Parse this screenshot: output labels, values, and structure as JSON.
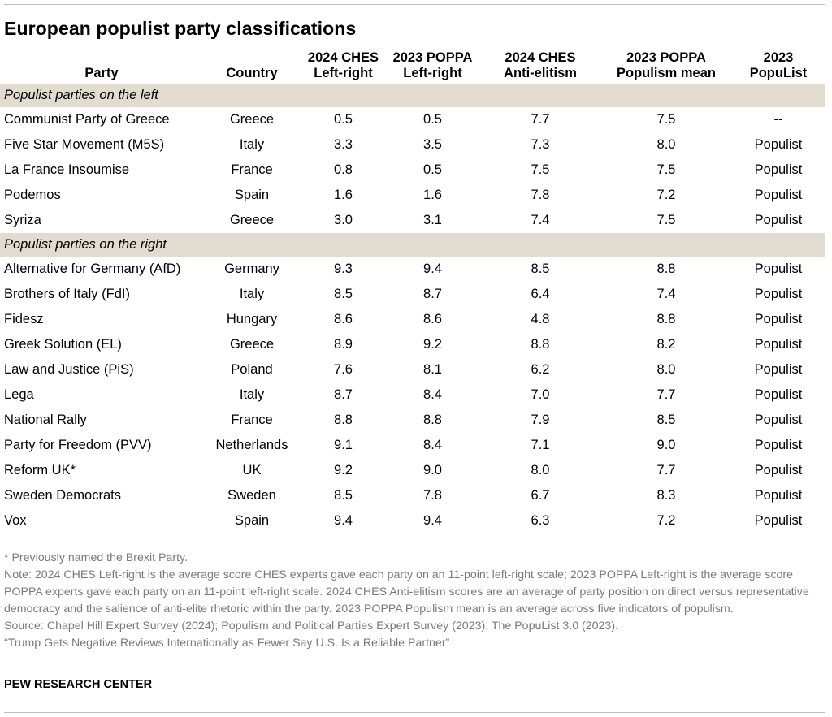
{
  "title": "European populist party classifications",
  "columns": {
    "party": "Party",
    "country": "Country",
    "ches_lr_1": "2024 CHES",
    "ches_lr_2": "Left-right",
    "poppa_lr_1": "2023 POPPA",
    "poppa_lr_2": "Left-right",
    "ches_ae_1": "2024 CHES",
    "ches_ae_2": "Anti-elitism",
    "poppa_pop_1": "2023 POPPA",
    "poppa_pop_2": "Populism mean",
    "populist_1": "2023",
    "populist_2": "PopuList"
  },
  "sections": [
    {
      "label": "Populist parties on the left",
      "rows": [
        [
          "Communist Party of Greece",
          "Greece",
          "0.5",
          "0.5",
          "7.7",
          "7.5",
          "--"
        ],
        [
          "Five Star Movement (M5S)",
          "Italy",
          "3.3",
          "3.5",
          "7.3",
          "8.0",
          "Populist"
        ],
        [
          "La France Insoumise",
          "France",
          "0.8",
          "0.5",
          "7.5",
          "7.5",
          "Populist"
        ],
        [
          "Podemos",
          "Spain",
          "1.6",
          "1.6",
          "7.8",
          "7.2",
          "Populist"
        ],
        [
          "Syriza",
          "Greece",
          "3.0",
          "3.1",
          "7.4",
          "7.5",
          "Populist"
        ]
      ]
    },
    {
      "label": "Populist parties on the right",
      "rows": [
        [
          "Alternative for Germany (AfD)",
          "Germany",
          "9.3",
          "9.4",
          "8.5",
          "8.8",
          "Populist"
        ],
        [
          "Brothers of Italy (FdI)",
          "Italy",
          "8.5",
          "8.7",
          "6.4",
          "7.4",
          "Populist"
        ],
        [
          "Fidesz",
          "Hungary",
          "8.6",
          "8.6",
          "4.8",
          "8.8",
          "Populist"
        ],
        [
          "Greek Solution (EL)",
          "Greece",
          "8.9",
          "9.2",
          "8.8",
          "8.2",
          "Populist"
        ],
        [
          "Law and Justice (PiS)",
          "Poland",
          "7.6",
          "8.1",
          "6.2",
          "8.0",
          "Populist"
        ],
        [
          "Lega",
          "Italy",
          "8.7",
          "8.4",
          "7.0",
          "7.7",
          "Populist"
        ],
        [
          "National Rally",
          "France",
          "8.8",
          "8.8",
          "7.9",
          "8.5",
          "Populist"
        ],
        [
          "Party for Freedom (PVV)",
          "Netherlands",
          "9.1",
          "8.4",
          "7.1",
          "9.0",
          "Populist"
        ],
        [
          "Reform UK*",
          "UK",
          "9.2",
          "9.0",
          "8.0",
          "7.7",
          "Populist"
        ],
        [
          "Sweden Democrats",
          "Sweden",
          "8.5",
          "7.8",
          "6.7",
          "8.3",
          "Populist"
        ],
        [
          "Vox",
          "Spain",
          "9.4",
          "9.4",
          "6.3",
          "7.2",
          "Populist"
        ]
      ]
    }
  ],
  "notes": {
    "footnote": "* Previously named the Brexit Party.",
    "note": "Note: 2024 CHES Left-right is the average score CHES experts gave each party on an 11-point left-right scale; 2023 POPPA Left-right is the average score POPPA experts gave each party on an 11-point left-right scale. 2024 CHES Anti-elitism scores are an average of party position on direct versus representative democracy and the salience of anti-elite rhetoric within the party. 2023 POPPA Populism mean is an average across five indicators of populism.",
    "source": "Source: Chapel Hill Expert Survey (2024); Populism and Political Parties Expert Survey (2023); The PopuList 3.0 (2023).",
    "report": "“Trump Gets Negative Reviews Internationally as Fewer Say U.S. Is a Reliable Partner”"
  },
  "brand": "PEW RESEARCH CENTER",
  "colors": {
    "section_band": "#e1dccf",
    "note_text": "#7a7a7a",
    "rule": "#bdbdbd"
  }
}
